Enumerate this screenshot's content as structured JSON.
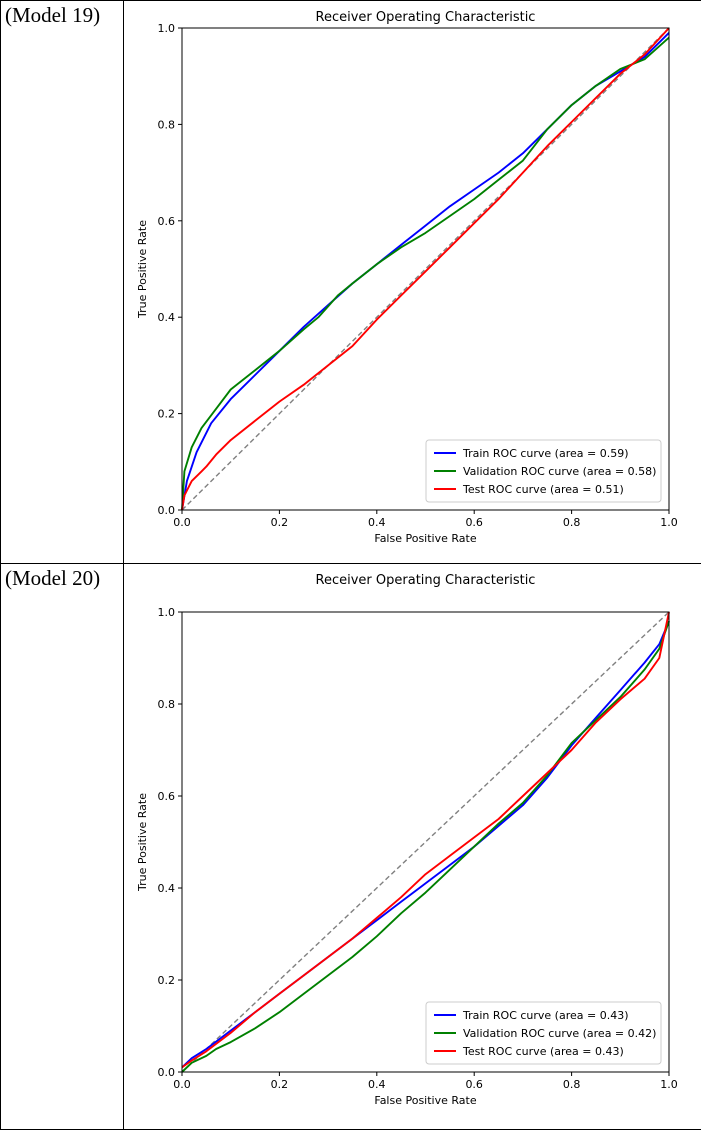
{
  "panels": [
    {
      "label": "(Model 19)",
      "chart_data": {
        "type": "line",
        "title": "Receiver Operating Characteristic",
        "xlabel": "False Positive Rate",
        "ylabel": "True Positive Rate",
        "xlim": [
          0,
          1
        ],
        "ylim": [
          0,
          1
        ],
        "xticks": [
          "0.0",
          "0.2",
          "0.4",
          "0.6",
          "0.8",
          "1.0"
        ],
        "yticks": [
          "0.0",
          "0.2",
          "0.4",
          "0.6",
          "0.8",
          "1.0"
        ],
        "grid": false,
        "legend_position": "lower right",
        "diagonal": {
          "color": "#808080",
          "style": "dashed"
        },
        "series": [
          {
            "name": "Train ROC curve (area = 0.59)",
            "color": "#0000ff",
            "x": [
              0,
              0.01,
              0.03,
              0.06,
              0.1,
              0.15,
              0.2,
              0.25,
              0.3,
              0.35,
              0.4,
              0.45,
              0.5,
              0.55,
              0.6,
              0.65,
              0.7,
              0.75,
              0.8,
              0.85,
              0.9,
              0.95,
              1.0
            ],
            "y": [
              0,
              0.06,
              0.12,
              0.18,
              0.23,
              0.28,
              0.33,
              0.38,
              0.425,
              0.47,
              0.51,
              0.55,
              0.59,
              0.63,
              0.665,
              0.7,
              0.74,
              0.79,
              0.84,
              0.88,
              0.91,
              0.94,
              0.99
            ]
          },
          {
            "name": "Validation ROC curve (area = 0.58)",
            "color": "#008000",
            "x": [
              0,
              0.005,
              0.02,
              0.04,
              0.07,
              0.1,
              0.15,
              0.2,
              0.25,
              0.28,
              0.32,
              0.35,
              0.4,
              0.45,
              0.5,
              0.55,
              0.6,
              0.65,
              0.7,
              0.75,
              0.8,
              0.85,
              0.9,
              0.95,
              1.0
            ],
            "y": [
              0,
              0.08,
              0.13,
              0.17,
              0.21,
              0.25,
              0.29,
              0.33,
              0.375,
              0.4,
              0.445,
              0.47,
              0.51,
              0.545,
              0.575,
              0.61,
              0.645,
              0.685,
              0.725,
              0.79,
              0.84,
              0.88,
              0.915,
              0.935,
              0.98
            ]
          },
          {
            "name": "Test ROC curve (area = 0.51)",
            "color": "#ff0000",
            "x": [
              0,
              0.005,
              0.02,
              0.04,
              0.05,
              0.07,
              0.1,
              0.15,
              0.2,
              0.25,
              0.3,
              0.35,
              0.4,
              0.45,
              0.5,
              0.55,
              0.6,
              0.65,
              0.7,
              0.75,
              0.8,
              0.85,
              0.9,
              0.95,
              1.0
            ],
            "y": [
              0,
              0.03,
              0.06,
              0.08,
              0.09,
              0.115,
              0.145,
              0.185,
              0.225,
              0.26,
              0.3,
              0.34,
              0.395,
              0.445,
              0.495,
              0.545,
              0.595,
              0.645,
              0.7,
              0.755,
              0.805,
              0.855,
              0.905,
              0.945,
              1.0
            ]
          }
        ]
      }
    },
    {
      "label": "(Model 20)",
      "chart_data": {
        "type": "line",
        "title": "Receiver Operating Characteristic",
        "xlabel": "False Positive Rate",
        "ylabel": "True Positive Rate",
        "xlim": [
          0,
          1
        ],
        "ylim": [
          0,
          1
        ],
        "xticks": [
          "0.0",
          "0.2",
          "0.4",
          "0.6",
          "0.8",
          "1.0"
        ],
        "yticks": [
          "0.0",
          "0.2",
          "0.4",
          "0.6",
          "0.8",
          "1.0"
        ],
        "grid": false,
        "legend_position": "lower right",
        "diagonal": {
          "color": "#808080",
          "style": "dashed"
        },
        "series": [
          {
            "name": "Train ROC curve (area = 0.43)",
            "color": "#0000ff",
            "x": [
              0,
              0.02,
              0.05,
              0.1,
              0.15,
              0.2,
              0.25,
              0.3,
              0.35,
              0.4,
              0.45,
              0.5,
              0.55,
              0.6,
              0.65,
              0.7,
              0.75,
              0.8,
              0.85,
              0.9,
              0.95,
              0.98,
              1.0
            ],
            "y": [
              0.01,
              0.03,
              0.05,
              0.09,
              0.13,
              0.17,
              0.21,
              0.25,
              0.29,
              0.33,
              0.37,
              0.41,
              0.45,
              0.49,
              0.535,
              0.58,
              0.64,
              0.71,
              0.77,
              0.83,
              0.89,
              0.93,
              0.98
            ]
          },
          {
            "name": "Validation ROC curve (area = 0.42)",
            "color": "#008000",
            "x": [
              0,
              0.02,
              0.05,
              0.07,
              0.1,
              0.15,
              0.2,
              0.25,
              0.3,
              0.35,
              0.4,
              0.45,
              0.5,
              0.55,
              0.6,
              0.65,
              0.7,
              0.75,
              0.8,
              0.85,
              0.9,
              0.95,
              0.98,
              1.0
            ],
            "y": [
              0,
              0.02,
              0.035,
              0.05,
              0.065,
              0.095,
              0.13,
              0.17,
              0.21,
              0.25,
              0.295,
              0.345,
              0.39,
              0.44,
              0.49,
              0.54,
              0.585,
              0.645,
              0.715,
              0.765,
              0.815,
              0.875,
              0.92,
              0.98
            ]
          },
          {
            "name": "Test ROC curve (area = 0.43)",
            "color": "#ff0000",
            "x": [
              0,
              0.02,
              0.05,
              0.1,
              0.15,
              0.2,
              0.25,
              0.3,
              0.35,
              0.4,
              0.45,
              0.5,
              0.55,
              0.6,
              0.65,
              0.7,
              0.75,
              0.8,
              0.85,
              0.9,
              0.95,
              0.98,
              1.0
            ],
            "y": [
              0.01,
              0.025,
              0.045,
              0.085,
              0.13,
              0.17,
              0.21,
              0.25,
              0.29,
              0.335,
              0.38,
              0.43,
              0.47,
              0.51,
              0.55,
              0.6,
              0.65,
              0.7,
              0.76,
              0.81,
              0.855,
              0.9,
              1.0
            ]
          }
        ]
      }
    }
  ]
}
